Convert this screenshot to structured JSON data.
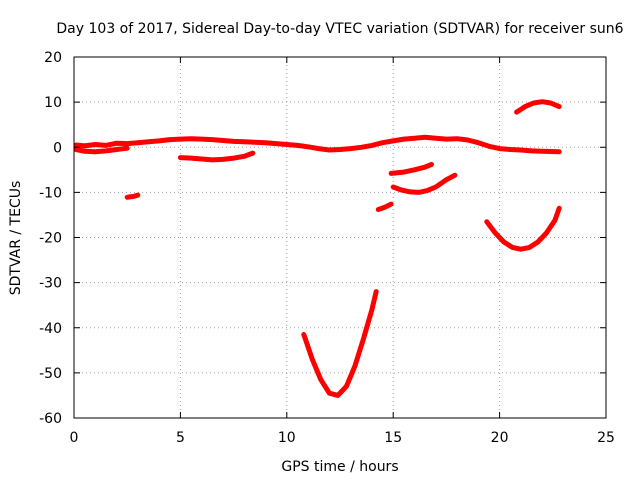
{
  "chart_data": {
    "type": "line",
    "title": "Day 103 of 2017, Sidereal Day-to-day VTEC variation (SDTVAR) for receiver sun6",
    "xlabel": "GPS time / hours",
    "ylabel": "SDTVAR / TECUs",
    "xlim": [
      0,
      25
    ],
    "ylim": [
      -60,
      20
    ],
    "xticks": [
      0,
      5,
      10,
      15,
      20,
      25
    ],
    "yticks": [
      -60,
      -50,
      -40,
      -30,
      -20,
      -10,
      0,
      10,
      20
    ],
    "grid": true,
    "legend": "none",
    "color": "#ff0000",
    "series": [
      {
        "name": "seg-main-1",
        "points": [
          [
            0.1,
            0.5
          ],
          [
            0.5,
            0.3
          ],
          [
            1.0,
            0.6
          ],
          [
            1.5,
            0.4
          ],
          [
            2.0,
            0.9
          ],
          [
            2.5,
            0.8
          ],
          [
            3.0,
            1.0
          ],
          [
            3.5,
            1.2
          ],
          [
            4.0,
            1.4
          ],
          [
            4.5,
            1.7
          ],
          [
            5.0,
            1.8
          ],
          [
            5.5,
            1.9
          ],
          [
            6.0,
            1.8
          ],
          [
            6.5,
            1.7
          ],
          [
            7.0,
            1.5
          ],
          [
            7.5,
            1.3
          ],
          [
            8.0,
            1.2
          ],
          [
            8.5,
            1.1
          ],
          [
            9.0,
            1.0
          ],
          [
            9.5,
            0.8
          ],
          [
            10.0,
            0.6
          ],
          [
            10.5,
            0.4
          ],
          [
            11.0,
            0.1
          ],
          [
            11.5,
            -0.3
          ],
          [
            12.0,
            -0.6
          ],
          [
            12.5,
            -0.5
          ],
          [
            13.0,
            -0.3
          ],
          [
            13.5,
            0.0
          ],
          [
            14.0,
            0.4
          ],
          [
            14.5,
            1.0
          ],
          [
            15.0,
            1.4
          ],
          [
            15.5,
            1.8
          ],
          [
            16.0,
            2.0
          ],
          [
            16.5,
            2.2
          ],
          [
            17.0,
            2.0
          ],
          [
            17.5,
            1.8
          ],
          [
            18.0,
            1.9
          ],
          [
            18.5,
            1.6
          ],
          [
            19.0,
            1.0
          ],
          [
            19.5,
            0.2
          ],
          [
            20.0,
            -0.3
          ],
          [
            20.5,
            -0.5
          ],
          [
            21.0,
            -0.6
          ],
          [
            21.5,
            -0.8
          ],
          [
            22.0,
            -0.9
          ],
          [
            22.8,
            -1.0
          ]
        ]
      },
      {
        "name": "seg-main-2",
        "points": [
          [
            0.1,
            -0.5
          ],
          [
            0.5,
            -0.9
          ],
          [
            1.0,
            -1.0
          ],
          [
            1.5,
            -0.8
          ],
          [
            2.0,
            -0.5
          ],
          [
            2.5,
            -0.2
          ]
        ]
      },
      {
        "name": "seg-a",
        "points": [
          [
            5.0,
            -2.3
          ],
          [
            5.5,
            -2.4
          ],
          [
            6.0,
            -2.6
          ],
          [
            6.5,
            -2.8
          ],
          [
            7.0,
            -2.7
          ],
          [
            7.5,
            -2.4
          ],
          [
            8.0,
            -2.0
          ],
          [
            8.4,
            -1.3
          ]
        ]
      },
      {
        "name": "seg-b",
        "points": [
          [
            2.5,
            -11.1
          ],
          [
            2.8,
            -10.9
          ],
          [
            3.0,
            -10.6
          ]
        ]
      },
      {
        "name": "seg-c",
        "points": [
          [
            10.8,
            -41.5
          ],
          [
            11.2,
            -47.0
          ],
          [
            11.6,
            -51.5
          ],
          [
            12.0,
            -54.5
          ],
          [
            12.4,
            -55.0
          ],
          [
            12.8,
            -53.0
          ],
          [
            13.2,
            -48.5
          ],
          [
            13.6,
            -42.5
          ],
          [
            14.0,
            -36.0
          ],
          [
            14.2,
            -32.0
          ]
        ]
      },
      {
        "name": "seg-d",
        "points": [
          [
            14.3,
            -13.8
          ],
          [
            14.6,
            -13.3
          ],
          [
            14.9,
            -12.6
          ]
        ]
      },
      {
        "name": "seg-e",
        "points": [
          [
            14.9,
            -5.8
          ],
          [
            15.5,
            -5.5
          ],
          [
            16.0,
            -5.0
          ],
          [
            16.5,
            -4.4
          ],
          [
            16.8,
            -3.8
          ]
        ]
      },
      {
        "name": "seg-f",
        "points": [
          [
            15.0,
            -8.8
          ],
          [
            15.4,
            -9.5
          ],
          [
            15.8,
            -9.9
          ],
          [
            16.2,
            -10.0
          ],
          [
            16.6,
            -9.6
          ],
          [
            17.0,
            -8.8
          ],
          [
            17.5,
            -7.2
          ],
          [
            17.9,
            -6.2
          ]
        ]
      },
      {
        "name": "seg-g",
        "points": [
          [
            19.4,
            -16.5
          ],
          [
            19.8,
            -19.0
          ],
          [
            20.2,
            -21.0
          ],
          [
            20.6,
            -22.2
          ],
          [
            21.0,
            -22.6
          ],
          [
            21.4,
            -22.2
          ],
          [
            21.8,
            -21.0
          ],
          [
            22.2,
            -19.0
          ],
          [
            22.6,
            -16.2
          ],
          [
            22.8,
            -13.5
          ]
        ]
      },
      {
        "name": "seg-h",
        "points": [
          [
            20.8,
            7.8
          ],
          [
            21.2,
            9.0
          ],
          [
            21.6,
            9.8
          ],
          [
            22.0,
            10.1
          ],
          [
            22.4,
            9.8
          ],
          [
            22.8,
            9.0
          ]
        ]
      }
    ]
  }
}
